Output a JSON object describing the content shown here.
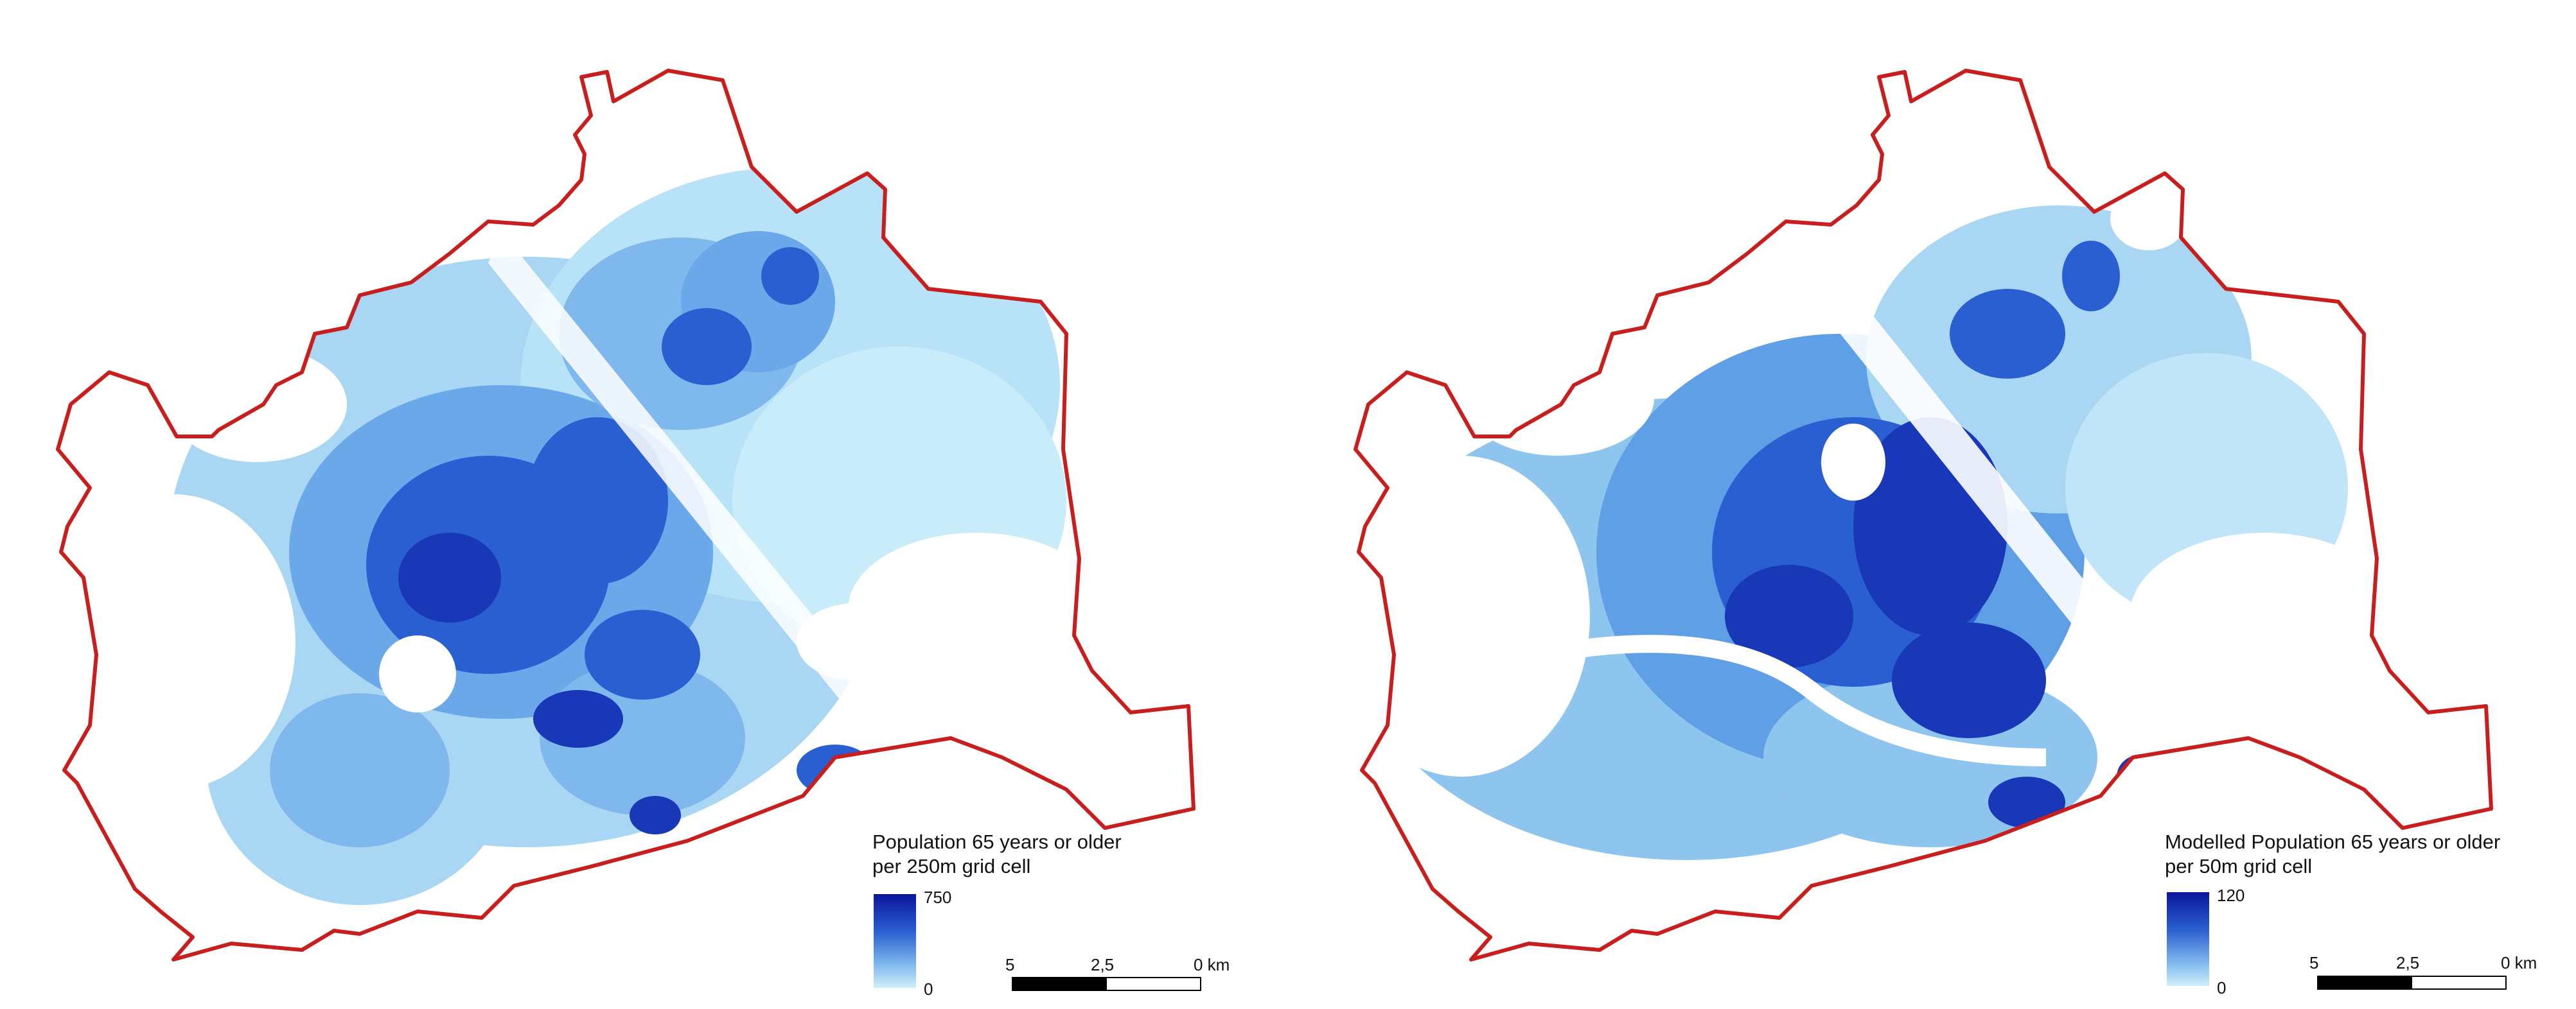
{
  "maps": [
    {
      "legend": {
        "title_line1": "Population 65 years or older",
        "title_line2": "per 250m grid cell",
        "max": "750",
        "min": "0",
        "ramp_colors": [
          "#08169c",
          "#2a5fd1",
          "#7fb8ec",
          "#cfeefb"
        ]
      },
      "scalebar": {
        "left": "5",
        "mid": "2,5",
        "right": "0 km"
      }
    },
    {
      "legend": {
        "title_line1": "Modelled Population 65 years or older",
        "title_line2": "per 50m grid cell",
        "max": "120",
        "min": "0",
        "ramp_colors": [
          "#08169c",
          "#2a5fd1",
          "#7fb8ec",
          "#cfeefb"
        ]
      },
      "scalebar": {
        "left": "5",
        "mid": "2,5",
        "right": "0 km"
      }
    }
  ],
  "colors": {
    "boundary": "#c81e1e",
    "density_high": "#08169c",
    "density_mid": "#2a5fd1",
    "density_low": "#7fb8ec",
    "density_min": "#cfeefb"
  }
}
